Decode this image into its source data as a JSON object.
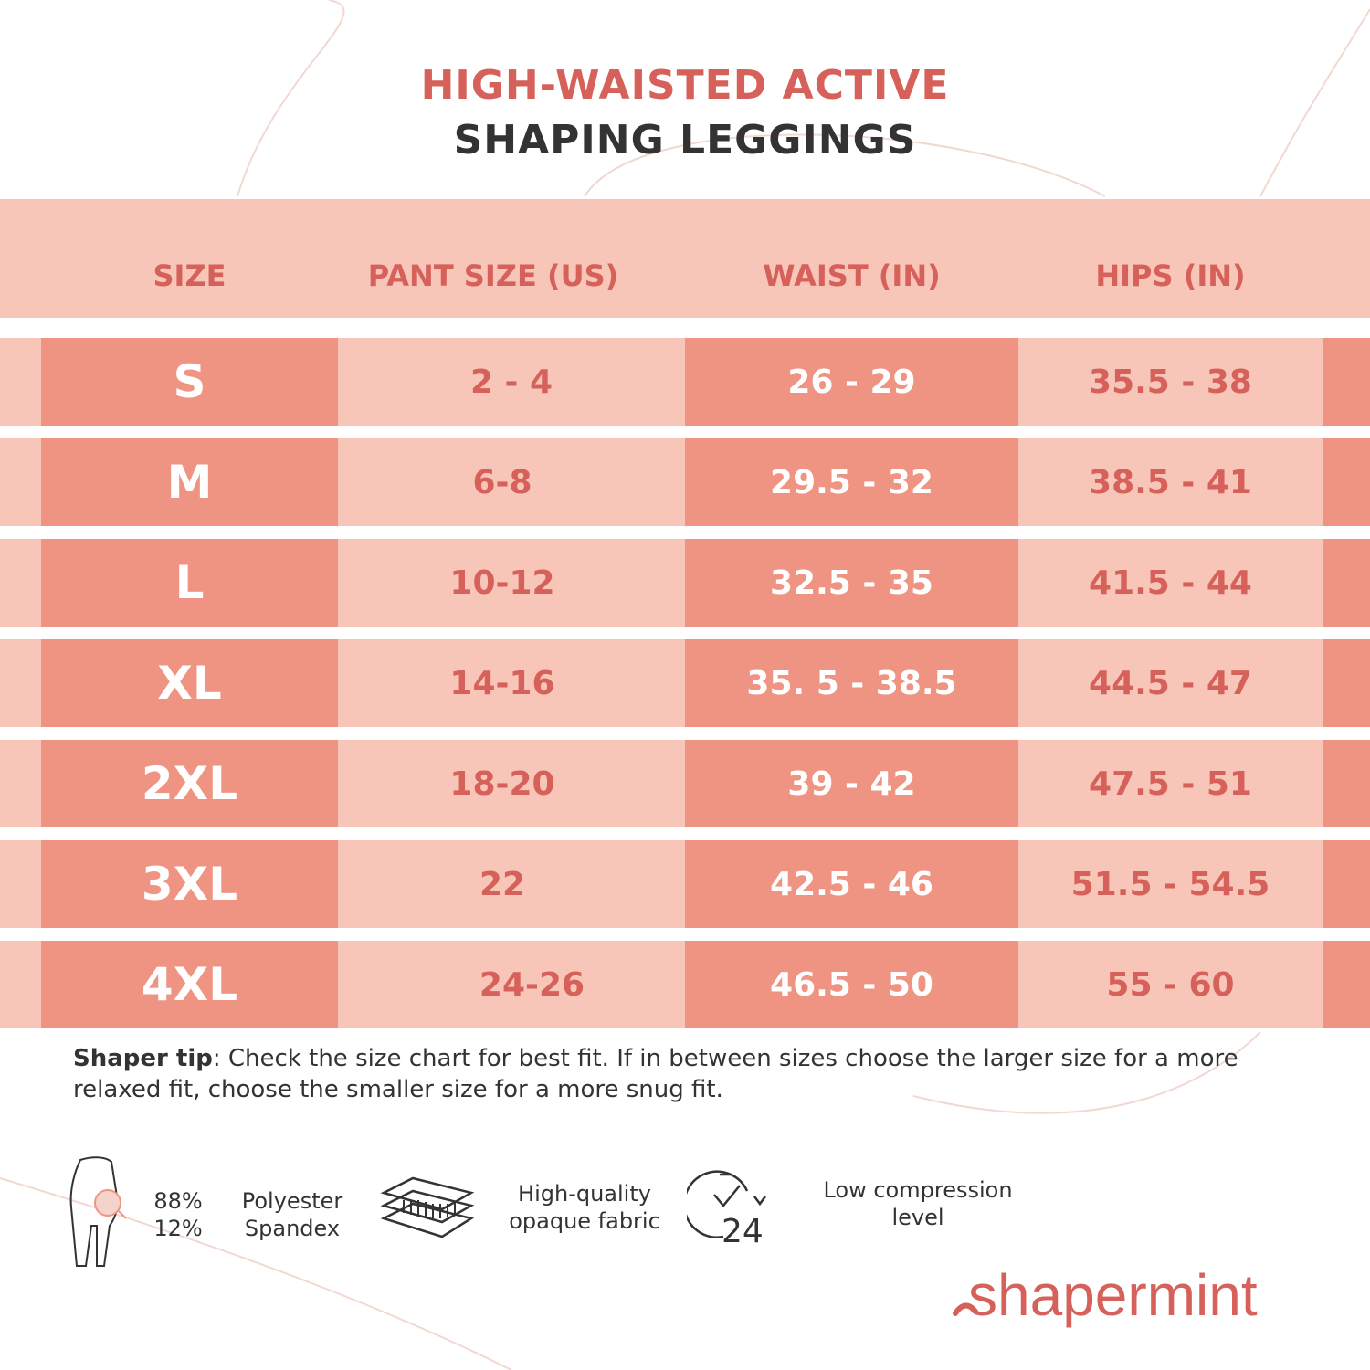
{
  "title": {
    "line1": "HIGH-WAISTED ACTIVE",
    "line2": "SHAPING LEGGINGS"
  },
  "colors": {
    "accent": "#d6605a",
    "light_band": "#f7c6b8",
    "dark_band": "#ef9483",
    "text": "#333333"
  },
  "table": {
    "headers": {
      "size": "SIZE",
      "pant": "PANT SIZE (US)",
      "waist": "WAIST (IN)",
      "hips": "HIPS (IN)"
    },
    "rows": [
      {
        "size": "S",
        "pant": "2 - 4",
        "waist": "26 - 29",
        "hips": "35.5 - 38"
      },
      {
        "size": "M",
        "pant": "6-8",
        "waist": "29.5 - 32",
        "hips": "38.5 - 41"
      },
      {
        "size": "L",
        "pant": "10-12",
        "waist": "32.5 - 35",
        "hips": "41.5 - 44"
      },
      {
        "size": "XL",
        "pant": "14-16",
        "waist": "35. 5 - 38.5",
        "hips": "44.5 - 47"
      },
      {
        "size": "2XL",
        "pant": "18-20",
        "waist": "39 - 42",
        "hips": "47.5 - 51"
      },
      {
        "size": "3XL",
        "pant": "22",
        "waist": "42.5 - 46",
        "hips": "51.5 - 54.5"
      },
      {
        "size": "4XL",
        "pant": "24-26",
        "waist": "46.5 - 50",
        "hips": "55 - 60"
      }
    ]
  },
  "tip": {
    "label": "Shaper tip",
    "text": ": Check the size chart for best fit. If in between sizes choose the larger size for a more relaxed fit, choose the smaller size for a more snug fit."
  },
  "features": {
    "material_pct1": "88%",
    "material_pct2": "12%",
    "material_name1": "Polyester",
    "material_name2": "Spandex",
    "fabric_line1": "High-quality",
    "fabric_line2": "opaque fabric",
    "clock_number": "24",
    "compression_line1": "Low compression",
    "compression_line2": "level"
  },
  "icons": [
    "leggings-icon",
    "fabric-layers-icon",
    "clock-24-icon"
  ],
  "brand": {
    "logo_text": "shapermint"
  }
}
